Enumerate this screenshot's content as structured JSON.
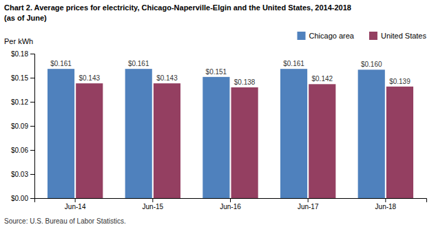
{
  "chart_data": {
    "type": "bar",
    "title": "Chart 2. Average prices for electricity, Chicago-Naperville-Elgin and the United States, 2014-2018",
    "subtitle": "(as of June)",
    "ylabel": "Per kWh",
    "source": "Source: U.S. Bureau of Labor Statistics.",
    "categories": [
      "Jun-14",
      "Jun-15",
      "Jun-16",
      "Jun-17",
      "Jun-18"
    ],
    "series": [
      {
        "name": "Chicago area",
        "color": "#4F81BD",
        "values": [
          0.161,
          0.161,
          0.151,
          0.161,
          0.16
        ],
        "value_labels": [
          "$0.161",
          "$0.161",
          "$0.151",
          "$0.161",
          "$0.160"
        ]
      },
      {
        "name": "United States",
        "color": "#943F61",
        "values": [
          0.143,
          0.143,
          0.138,
          0.142,
          0.139
        ],
        "value_labels": [
          "$0.143",
          "$0.143",
          "$0.138",
          "$0.142",
          "$0.139"
        ]
      }
    ],
    "ylim": [
      0,
      0.18
    ],
    "yticks": [
      {
        "value": 0.0,
        "label": "$0.00"
      },
      {
        "value": 0.03,
        "label": "$0.03"
      },
      {
        "value": 0.06,
        "label": "$0.06"
      },
      {
        "value": 0.09,
        "label": "$0.09"
      },
      {
        "value": 0.12,
        "label": "$0.12"
      },
      {
        "value": 0.15,
        "label": "$0.15"
      },
      {
        "value": 0.18,
        "label": "$0.18"
      }
    ],
    "grid": false,
    "legend": "top",
    "data_labels": true
  }
}
